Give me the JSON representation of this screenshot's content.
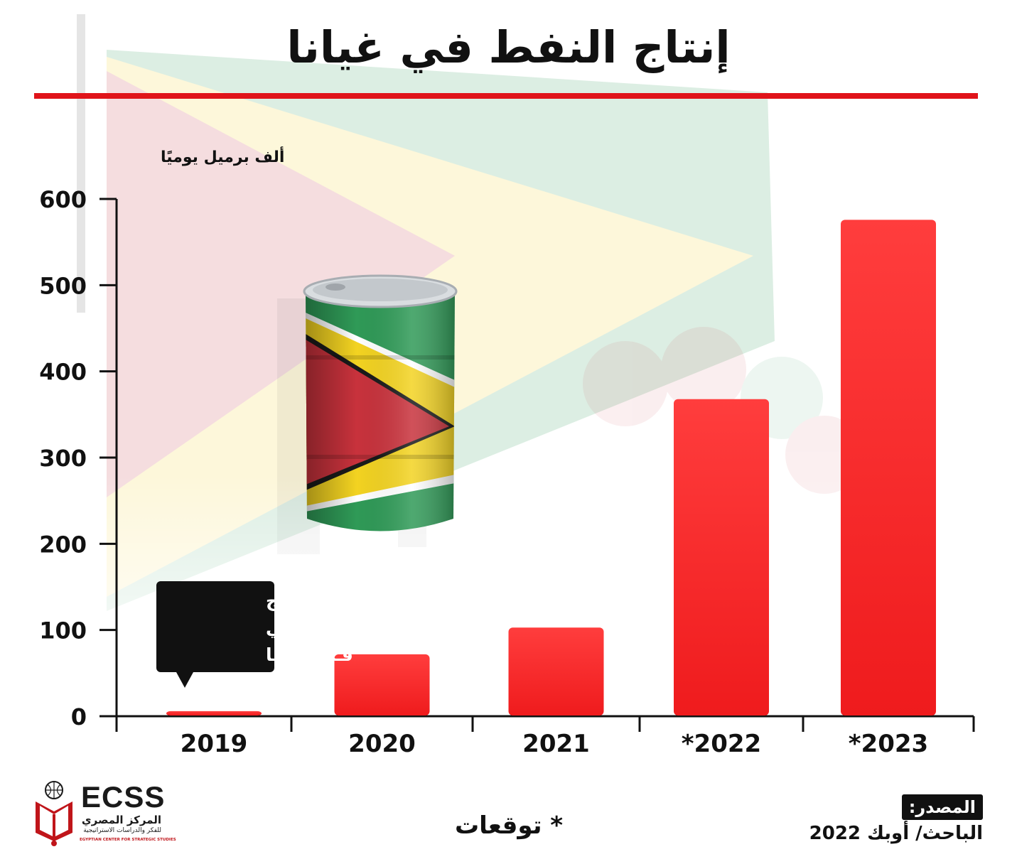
{
  "title": "إنتاج النفط في غيانا",
  "footnote": "* توقعات",
  "source": {
    "label": "المصدر:",
    "text": "الباحث/ أوبك 2022"
  },
  "logo": {
    "name": "ECSS",
    "arabic_name": "المركز المصري",
    "arabic_subtitle": "للفكر والدراسات الاستراتيجية",
    "english_subtitle": "EGYPTIAN CENTER FOR STRATEGIC STUDIES"
  },
  "annotation": {
    "lines": [
      "بداية الإنتاج",
      "الفعلـــي",
      "فـي غيانـا"
    ],
    "target_category": "2019"
  },
  "chart_data": {
    "type": "bar",
    "title": "إنتاج النفط في غيانا",
    "ylabel": "ألف برميل يوميًا",
    "xlabel": "",
    "categories": [
      "2019",
      "2020",
      "2021",
      "*2022",
      "*2023"
    ],
    "values": [
      5,
      71,
      102,
      367,
      575
    ],
    "ylim": [
      0,
      600
    ],
    "yticks": [
      0,
      100,
      200,
      300,
      400,
      500,
      600
    ],
    "grid": false,
    "bar_color": "#ef1b1d",
    "bar_color_light": "#ff3d3d"
  },
  "colors": {
    "accent": "#e0141a",
    "flag_green": "#2f9a57",
    "flag_yellow": "#f3d321",
    "flag_red": "#c8323c"
  }
}
